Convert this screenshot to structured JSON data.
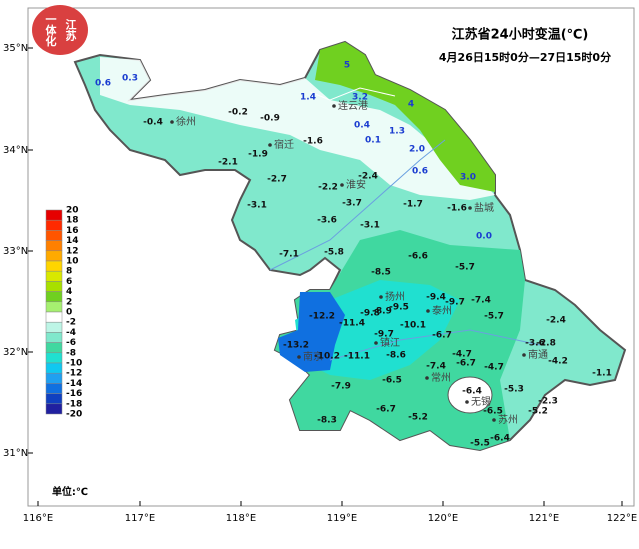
{
  "logo": [
    "江苏",
    "一体化"
  ],
  "title": "江苏省24小时变温(℃)",
  "subtitle": "4月26日15时0分—27日15时0分",
  "lat_labels": [
    "35°N",
    "34°N",
    "33°N",
    "32°N",
    "31°N"
  ],
  "lon_labels": [
    "116°E",
    "117°E",
    "118°E",
    "119°E",
    "120°E",
    "121°E",
    "122°E"
  ],
  "legend": {
    "unit": "单位:℃",
    "items": [
      {
        "value": 20,
        "color": "#e60000"
      },
      {
        "value": 18,
        "color": "#ff2a00"
      },
      {
        "value": 16,
        "color": "#ff5500"
      },
      {
        "value": 14,
        "color": "#ff8000"
      },
      {
        "value": 12,
        "color": "#ffaa00"
      },
      {
        "value": 10,
        "color": "#ffd500"
      },
      {
        "value": 8,
        "color": "#d9e800"
      },
      {
        "value": 6,
        "color": "#a8e000"
      },
      {
        "value": 4,
        "color": "#70d020"
      },
      {
        "value": 2,
        "color": "#a6f070"
      },
      {
        "value": 0,
        "color": "#ffffff"
      },
      {
        "value": -2,
        "color": "#bdf5e6"
      },
      {
        "value": -4,
        "color": "#80e8cc"
      },
      {
        "value": -6,
        "color": "#40d8a0"
      },
      {
        "value": -8,
        "color": "#20e0d0"
      },
      {
        "value": -10,
        "color": "#10c8f0"
      },
      {
        "value": -12,
        "color": "#20a0f0"
      },
      {
        "value": -14,
        "color": "#1070e0"
      },
      {
        "value": -16,
        "color": "#1040c0"
      },
      {
        "value": -18,
        "color": "#2020a0"
      },
      {
        "value": -20,
        "color": "#4010a0"
      }
    ]
  },
  "cities": [
    "徐州",
    "宿迁",
    "连云港",
    "淮安",
    "盐城",
    "扬州",
    "泰州",
    "南京",
    "镇江",
    "常州",
    "无锡",
    "苏州",
    "南通"
  ],
  "stations": [
    "0.6",
    "0.3",
    "5",
    "1.4",
    "3.2",
    "4",
    "-0.2",
    "-0.9",
    "-0.4",
    "0.4",
    "1.3",
    "0.1",
    "2.0",
    "-1.6",
    "-1.9",
    "-2.1",
    "0.6",
    "3.0",
    "-2.7",
    "-2.2",
    "-2.4",
    "-3.7",
    "-1.7",
    "-1.6",
    "-3.1",
    "-3.6",
    "-3.1",
    "0.0",
    "-7.1",
    "-5.8",
    "-6.6",
    "-5.7",
    "-8.5",
    "-9.4",
    "-9.7",
    "-7.4",
    "-12.2",
    "-11.4",
    "-9.8",
    "-8.9",
    "-9.5",
    "-5.7",
    "-2.4",
    "-10.1",
    "-6.7",
    "-9.7",
    "-13.2",
    "-10.2",
    "-11.1",
    "-8.6",
    "-4.7",
    "-3.6",
    "-2.8",
    "-7.4",
    "-6.7",
    "-4.7",
    "-4.2",
    "-1.1",
    "-7.9",
    "-6.5",
    "-6.4",
    "-5.3",
    "-2.3",
    "-6.7",
    "-5.2",
    "-6.5",
    "-5.2",
    "-8.3",
    "-5.5",
    "-6.4"
  ]
}
